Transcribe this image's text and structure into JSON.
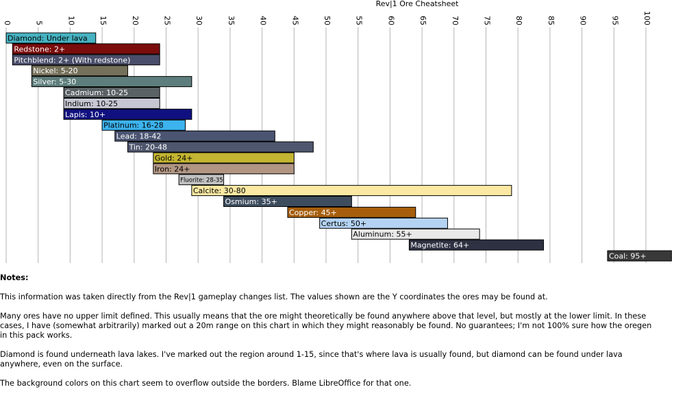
{
  "chart_data": {
    "type": "bar",
    "subtype": "floating-range",
    "title": "Rev|1 Ore Cheatsheet",
    "xlim": [
      0,
      100
    ],
    "x_ticks": [
      0,
      5,
      10,
      15,
      20,
      25,
      30,
      35,
      40,
      45,
      50,
      55,
      60,
      65,
      70,
      75,
      80,
      85,
      90,
      95,
      100
    ],
    "grid": true,
    "tick_label_orientation": "vertical",
    "bars": [
      {
        "label": "Diamond: Under lava",
        "start": 0,
        "end": 14,
        "color": "#47b3c2",
        "text_color": "#000000"
      },
      {
        "label": "Redstone: 2+",
        "start": 1,
        "end": 24,
        "color": "#7b0c0c",
        "text_color": "#ffffff"
      },
      {
        "label": "Pitchblend: 2+ (With redstone)",
        "start": 1,
        "end": 24,
        "color": "#4a4e6a",
        "text_color": "#ffffff"
      },
      {
        "label": "Nickel: 5-20",
        "start": 4,
        "end": 19,
        "color": "#75705a",
        "text_color": "#ffffff"
      },
      {
        "label": "Silver: 5-30",
        "start": 4,
        "end": 29,
        "color": "#5d7e7c",
        "text_color": "#ffffff"
      },
      {
        "label": "Cadmium: 10-25",
        "start": 9,
        "end": 24,
        "color": "#5b6266",
        "text_color": "#ffffff"
      },
      {
        "label": "Indium: 10-25",
        "start": 9,
        "end": 24,
        "color": "#c7c7d4",
        "text_color": "#000000"
      },
      {
        "label": "Lapis: 10+",
        "start": 9,
        "end": 29,
        "color": "#101080",
        "text_color": "#ffffff"
      },
      {
        "label": "Platinum: 16-28",
        "start": 15,
        "end": 28,
        "color": "#3cb3ee",
        "text_color": "#000000"
      },
      {
        "label": "Lead: 18-42",
        "start": 17,
        "end": 42,
        "color": "#4b5572",
        "text_color": "#ffffff"
      },
      {
        "label": "Tin: 20-48",
        "start": 19,
        "end": 48,
        "color": "#4f576e",
        "text_color": "#ffffff"
      },
      {
        "label": "Gold: 24+",
        "start": 23,
        "end": 45,
        "color": "#c4b532",
        "text_color": "#000000"
      },
      {
        "label": "Iron: 24+",
        "start": 23,
        "end": 45,
        "color": "#b19683",
        "text_color": "#000000"
      },
      {
        "label": "Fluorite: 28-35",
        "start": 27,
        "end": 34,
        "color": "#c2c2c2",
        "text_color": "#000000",
        "small_text": true
      },
      {
        "label": "Calcite: 30-80",
        "start": 29,
        "end": 79,
        "color": "#fbe9a3",
        "text_color": "#000000"
      },
      {
        "label": "Osmium: 35+",
        "start": 34,
        "end": 54,
        "color": "#3e4d5e",
        "text_color": "#ffffff"
      },
      {
        "label": "Copper: 45+",
        "start": 44,
        "end": 64,
        "color": "#a65e0c",
        "text_color": "#ffffff"
      },
      {
        "label": "Certus: 50+",
        "start": 49,
        "end": 69,
        "color": "#b4d3f3",
        "text_color": "#000000"
      },
      {
        "label": "Aluminum: 55+",
        "start": 54,
        "end": 74,
        "color": "#e9e9e9",
        "text_color": "#000000"
      },
      {
        "label": "Magnetite: 64+",
        "start": 63,
        "end": 84,
        "color": "#2e3141",
        "text_color": "#ffffff"
      },
      {
        "label": "Coal: 95+",
        "start": 94,
        "end": 104,
        "color": "#393939",
        "text_color": "#ffffff"
      }
    ]
  },
  "notes": {
    "heading": "Notes:",
    "paragraphs": [
      "This information was taken directly from the Rev|1 gameplay changes list. The values shown are the Y coordinates the ores may be found at.",
      "Many ores have no upper limit defined. This usually means that the ore might theoretically be found anywhere above that level, but mostly at the lower limit. In these cases, I have (somewhat arbitrarily) marked out a 20m range on this chart in which they might reasonably be found. No guarantees; I'm not 100% sure how the oregen in this pack works.",
      "Diamond is found underneath lava lakes. I've marked out the region around 1-15, since that's where lava is usually found, but diamond can be found under lava anywhere, even on the surface.",
      "The background colors on this chart seem to overflow outside the borders. Blame LibreOffice for that one."
    ]
  }
}
